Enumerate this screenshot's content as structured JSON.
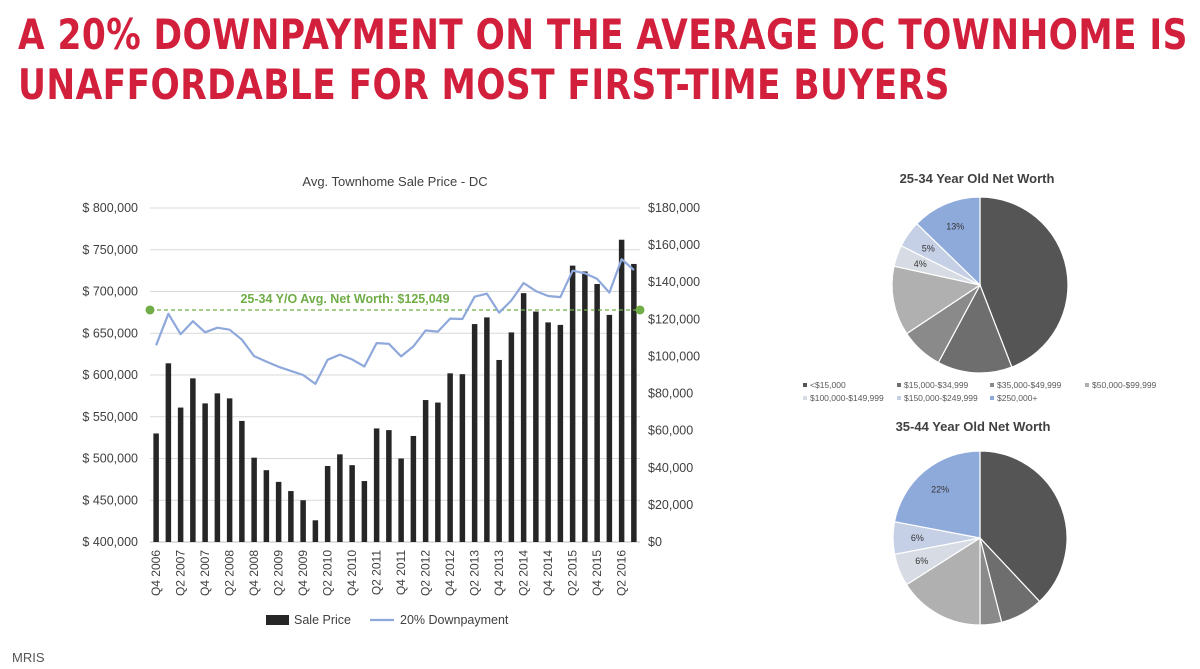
{
  "headline": {
    "line1": "A 20% DOWNPAYMENT ON THE AVERAGE DC TOWNHOME IS",
    "line2": "UNAFFORDABLE FOR MOST FIRST-TIME BUYERS"
  },
  "source": "MRIS",
  "colors": {
    "headline": "#d21f3c",
    "bar": "#262626",
    "line": "#8fa8dc",
    "reference": "#70ad47",
    "axis_text": "#404040"
  },
  "chart_data": [
    {
      "type": "bar",
      "title": "Avg. Townhome Sale Price - DC",
      "categories": [
        "Q4 2006",
        "Q1 2007",
        "Q2 2007",
        "Q3 2007",
        "Q4 2007",
        "Q1 2008",
        "Q2 2008",
        "Q3 2008",
        "Q4 2008",
        "Q1 2009",
        "Q2 2009",
        "Q3 2009",
        "Q4 2009",
        "Q1 2010",
        "Q2 2010",
        "Q3 2010",
        "Q4 2010",
        "Q1 2011",
        "Q2 2011",
        "Q3 2011",
        "Q4 2011",
        "Q1 2012",
        "Q2 2012",
        "Q3 2012",
        "Q4 2012",
        "Q1 2013",
        "Q2 2013",
        "Q3 2013",
        "Q4 2013",
        "Q1 2014",
        "Q2 2014",
        "Q3 2014",
        "Q4 2014",
        "Q1 2015",
        "Q2 2015",
        "Q3 2015",
        "Q4 2015",
        "Q1 2016",
        "Q2 2016",
        "Q3 2016"
      ],
      "tick_labels": [
        "Q4 2006",
        "Q2 2007",
        "Q4 2007",
        "Q2 2008",
        "Q4 2008",
        "Q2 2009",
        "Q4 2009",
        "Q2 2010",
        "Q4 2010",
        "Q2 2011",
        "Q4 2011",
        "Q2 2012",
        "Q4 2012",
        "Q2 2013",
        "Q4 2013",
        "Q2 2014",
        "Q4 2014",
        "Q2 2015",
        "Q4 2015",
        "Q2 2016"
      ],
      "series": [
        {
          "name": "Sale Price",
          "axis": "left",
          "kind": "bar",
          "values": [
            530000,
            614000,
            561000,
            596000,
            566000,
            578000,
            572000,
            545000,
            501000,
            486000,
            472000,
            461000,
            450000,
            426000,
            491000,
            505000,
            492000,
            473000,
            536000,
            534000,
            500000,
            527000,
            570000,
            567000,
            602000,
            601000,
            661000,
            669000,
            618000,
            651000,
            698000,
            676000,
            663000,
            660000,
            731000,
            724000,
            709000,
            672000,
            762000,
            733000
          ]
        },
        {
          "name": "20% Downpayment",
          "axis": "right",
          "kind": "line",
          "values": [
            106000,
            123000,
            112000,
            119000,
            113000,
            115500,
            114400,
            109000,
            100200,
            97200,
            94400,
            92200,
            90000,
            85200,
            98200,
            101000,
            98400,
            94600,
            107200,
            106800,
            100000,
            105400,
            114000,
            113400,
            120400,
            120200,
            132200,
            133800,
            123600,
            130200,
            139600,
            135200,
            132600,
            132000,
            146200,
            144800,
            141800,
            134400,
            152400,
            146600
          ]
        }
      ],
      "reference_line": {
        "label": "25-34 Y/O Avg. Net Worth: $125,049",
        "value": 125049,
        "axis": "right"
      },
      "y_left": {
        "ticks": [
          "$ 400,000",
          "$ 450,000",
          "$ 500,000",
          "$ 550,000",
          "$ 600,000",
          "$ 650,000",
          "$ 700,000",
          "$ 750,000",
          "$ 800,000"
        ],
        "range": [
          400000,
          800000
        ]
      },
      "y_right": {
        "ticks": [
          "$0",
          "$20,000",
          "$40,000",
          "$60,000",
          "$80,000",
          "$100,000",
          "$120,000",
          "$140,000",
          "$160,000",
          "$180,000"
        ],
        "range": [
          0,
          180000
        ]
      },
      "grid": true,
      "legend_position": "bottom"
    },
    {
      "type": "pie",
      "title": "25-34 Year Old Net Worth",
      "labels": [
        "<$15,000",
        "$15,000-$34,999",
        "$35,000-$49,999",
        "$50,000-$99,999",
        "$100,000-$149,999",
        "$150,000-$249,999",
        "$250,000+"
      ],
      "values": [
        45,
        14,
        8,
        13,
        4,
        5,
        13
      ],
      "data_labels": [
        "",
        "",
        "",
        "",
        "4%",
        "5%",
        "13%"
      ],
      "colors": [
        "#555555",
        "#6e6e6e",
        "#8a8a8a",
        "#b0b0b0",
        "#d7dbe3",
        "#c5d0e6",
        "#8eaadb"
      ],
      "legend_position": "bottom"
    },
    {
      "type": "pie",
      "title": "35-44 Year Old Net Worth",
      "labels": [
        "<$15,000",
        "$15,000-$34,999",
        "$35,000-$49,999",
        "$50,000-$99,999",
        "$100,000-$149,999",
        "$150,000-$249,999",
        "$250,000+"
      ],
      "values": [
        38,
        8,
        4,
        16,
        6,
        6,
        22
      ],
      "data_labels": [
        "",
        "",
        "",
        "",
        "6%",
        "6%",
        "22%"
      ],
      "colors": [
        "#555555",
        "#6e6e6e",
        "#8a8a8a",
        "#b0b0b0",
        "#d7dbe3",
        "#c5d0e6",
        "#8eaadb"
      ]
    }
  ]
}
